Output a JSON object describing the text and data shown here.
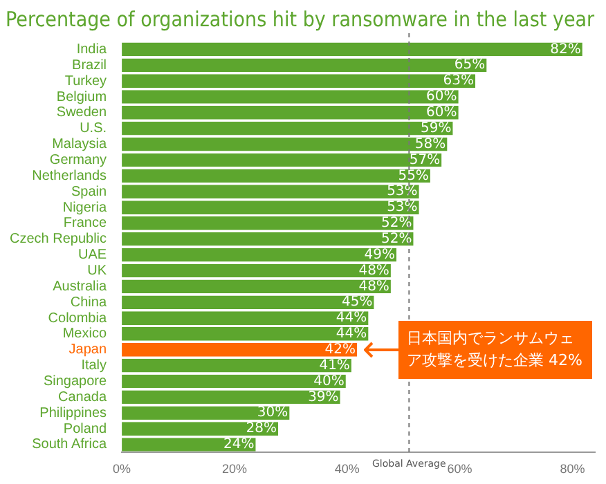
{
  "chart_data": {
    "type": "bar",
    "orientation": "horizontal",
    "title": "Percentage of organizations hit by ransomware in the last year",
    "categories": [
      "India",
      "Brazil",
      "Turkey",
      "Belgium",
      "Sweden",
      "U.S.",
      "Malaysia",
      "Germany",
      "Netherlands",
      "Spain",
      "Nigeria",
      "France",
      "Czech Republic",
      "UAE",
      "UK",
      "Australia",
      "China",
      "Colombia",
      "Mexico",
      "Japan",
      "Italy",
      "Singapore",
      "Canada",
      "Philippines",
      "Poland",
      "South Africa"
    ],
    "values": [
      82,
      65,
      63,
      60,
      60,
      59,
      58,
      57,
      55,
      53,
      53,
      52,
      52,
      49,
      48,
      48,
      45,
      44,
      44,
      42,
      41,
      40,
      39,
      30,
      28,
      24
    ],
    "value_labels": [
      "82%",
      "65%",
      "63%",
      "60%",
      "60%",
      "59%",
      "58%",
      "57%",
      "55%",
      "53%",
      "53%",
      "52%",
      "52%",
      "49%",
      "48%",
      "48%",
      "45%",
      "44%",
      "44%",
      "42%",
      "41%",
      "40%",
      "39%",
      "30%",
      "28%",
      "24%"
    ],
    "colors": [
      "#5da62e",
      "#5da62e",
      "#5da62e",
      "#5da62e",
      "#5da62e",
      "#5da62e",
      "#5da62e",
      "#5da62e",
      "#5da62e",
      "#5da62e",
      "#5da62e",
      "#5da62e",
      "#5da62e",
      "#5da62e",
      "#5da62e",
      "#5da62e",
      "#5da62e",
      "#5da62e",
      "#5da62e",
      "#ff6600",
      "#5da62e",
      "#5da62e",
      "#5da62e",
      "#5da62e",
      "#5da62e",
      "#5da62e"
    ],
    "xlim": [
      0,
      84
    ],
    "xticks": [
      {
        "value": 0,
        "label": "0%"
      },
      {
        "value": 20,
        "label": "20%"
      },
      {
        "value": 40,
        "label": "40%"
      },
      {
        "value": 60,
        "label": "60%"
      },
      {
        "value": 80,
        "label": "80%"
      }
    ],
    "ref_lines": [
      {
        "axis": "x",
        "value": 51,
        "label": "Global Average",
        "color": "#777777",
        "line_style": "dashed"
      }
    ],
    "annotations": [
      {
        "text": "日本国内でランサムウェア攻撃を受けた企業 42%",
        "x": 42,
        "y": "Japan"
      }
    ],
    "grid": false,
    "legend": false
  }
}
